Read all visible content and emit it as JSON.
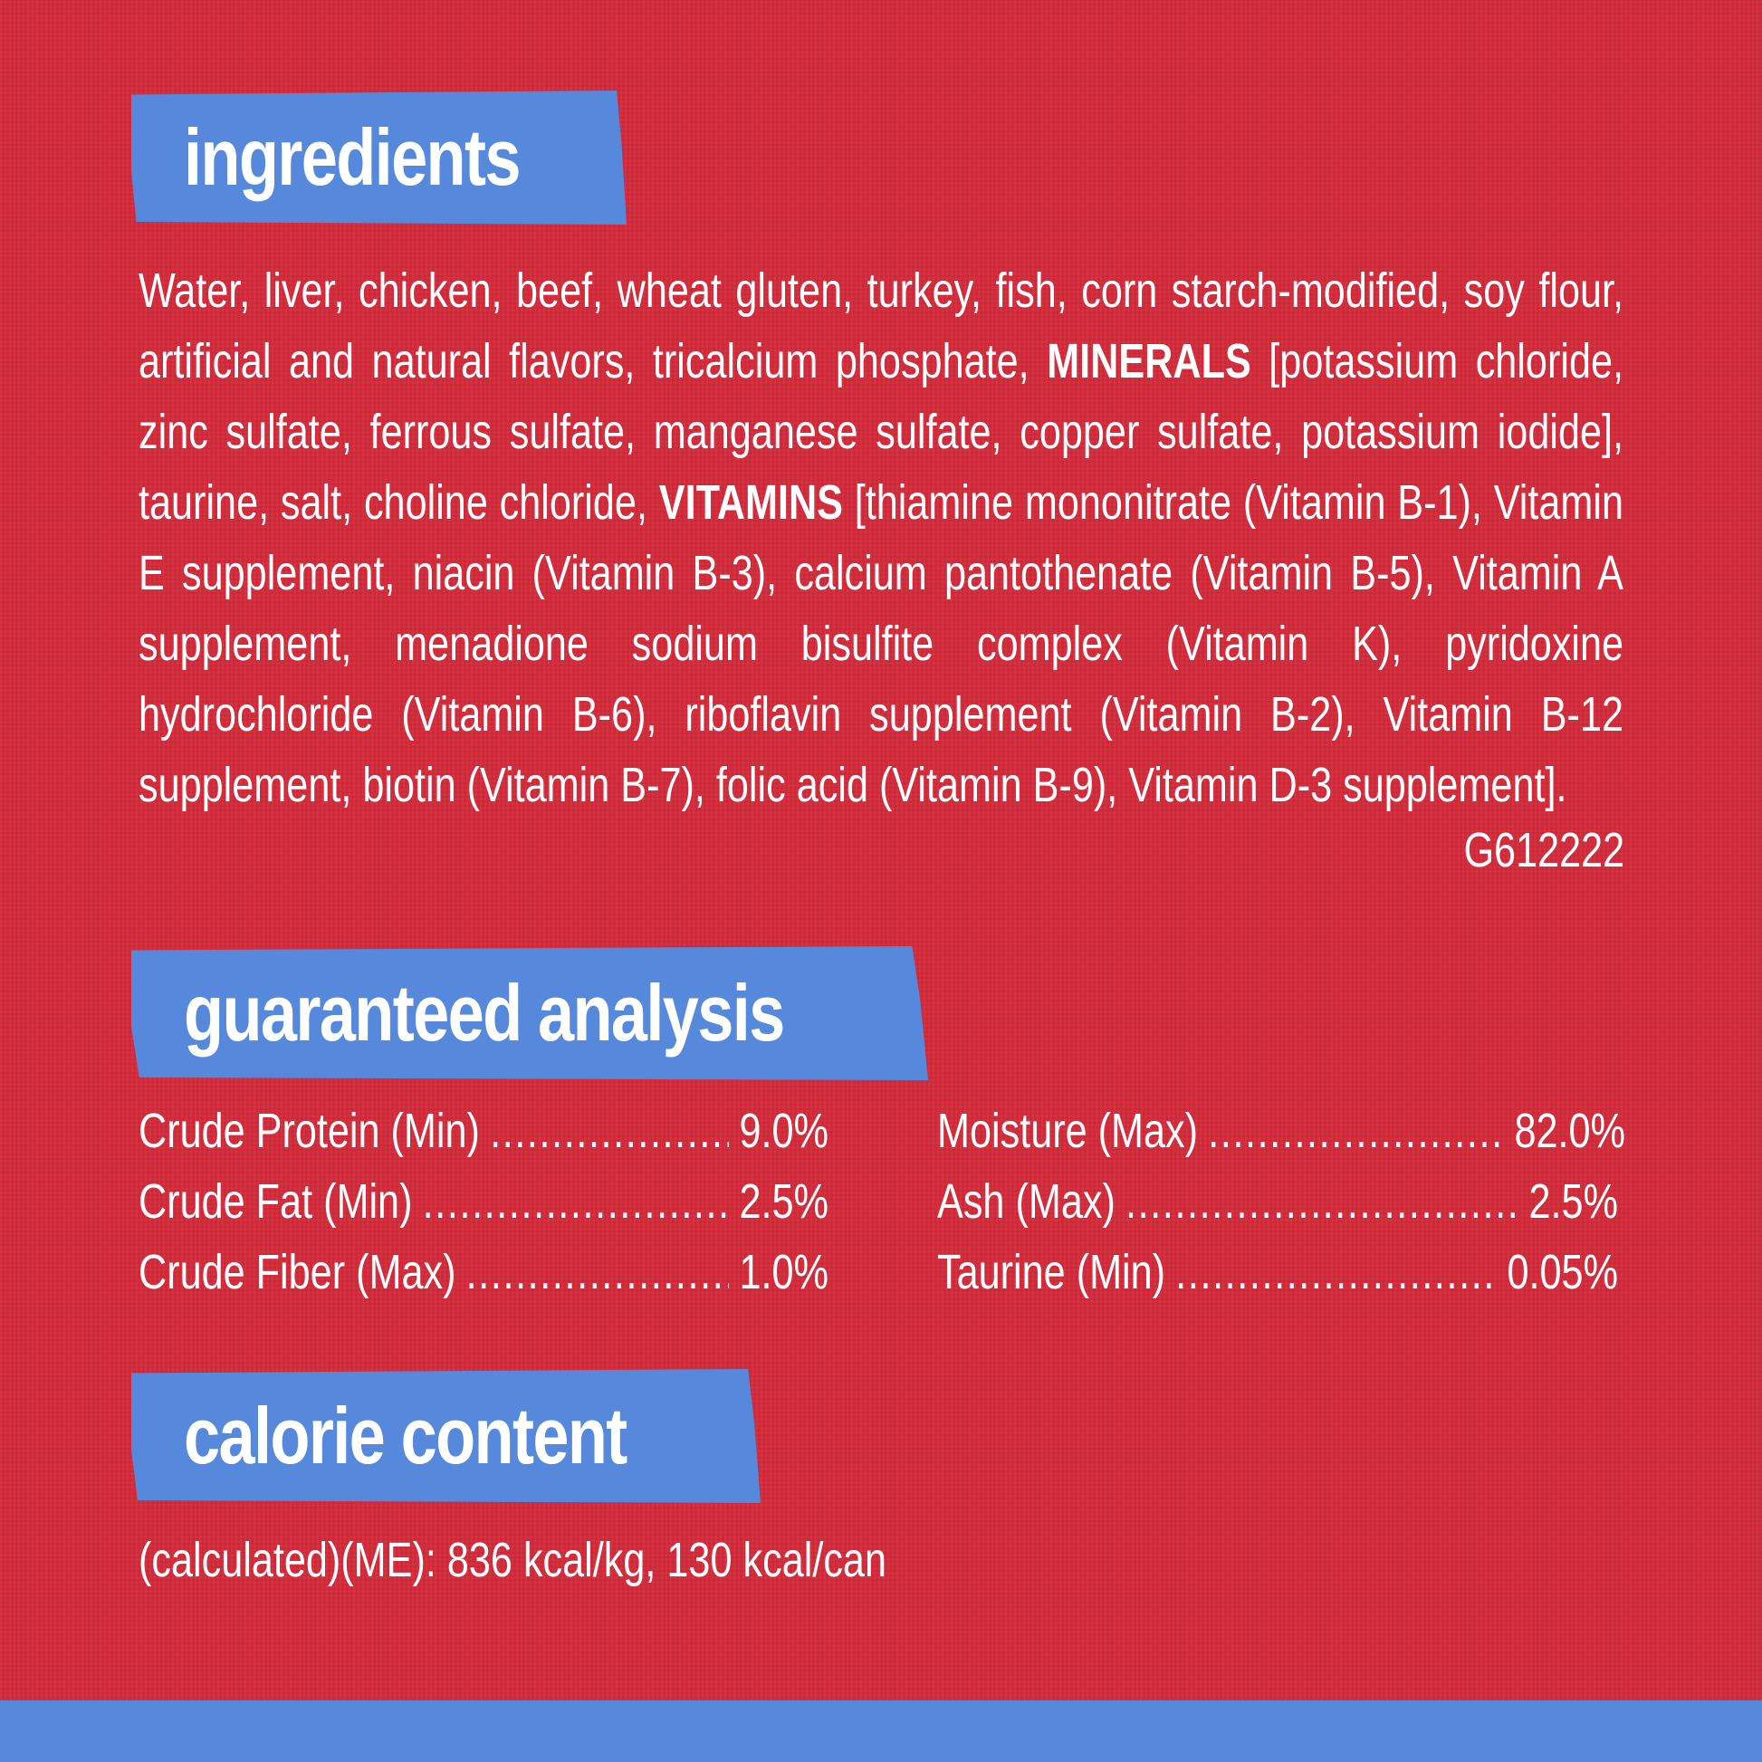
{
  "colors": {
    "background": "#d42b3b",
    "accent": "#5689dc",
    "text": "#ffffff"
  },
  "ingredients": {
    "title": "ingredients",
    "text_before_minerals": "Water, liver, chicken, beef, wheat gluten, turkey, fish, corn starch-modified, soy flour, artificial and natural flavors, tricalcium phosphate, ",
    "minerals_label": "MINERALS",
    "minerals_text": " [potassium chloride, zinc sulfate, ferrous sulfate, manganese sulfate, copper sulfate, potassium iodide], taurine, salt, choline chloride, ",
    "vitamins_label": "VITAMINS",
    "vitamins_text": " [thiamine mononitrate (Vitamin B-1), Vitamin E supplement, niacin (Vitamin B-3), calcium pantothenate (Vitamin B-5), Vitamin A supplement, menadione sodium bisulfite complex (Vitamin K), pyridoxine hydrochloride (Vitamin B-6), riboflavin supplement (Vitamin B-2), Vitamin B-12 supplement, biotin (Vitamin B-7), folic acid (Vitamin B-9), Vitamin D-3 supplement].",
    "code": "G612222"
  },
  "analysis": {
    "title": "guaranteed analysis",
    "left": [
      {
        "label": "Crude Protein (Min)",
        "value": "9.0%"
      },
      {
        "label": "Crude Fat (Min)",
        "value": "2.5%"
      },
      {
        "label": "Crude Fiber (Max)",
        "value": "1.0%"
      }
    ],
    "right": [
      {
        "label": "Moisture (Max)",
        "value": "82.0%"
      },
      {
        "label": "Ash (Max)",
        "value": "2.5%"
      },
      {
        "label": "Taurine (Min)",
        "value": "0.05%"
      }
    ]
  },
  "calorie": {
    "title": "calorie content",
    "text": "(calculated)(ME): 836 kcal/kg, 130 kcal/can"
  }
}
